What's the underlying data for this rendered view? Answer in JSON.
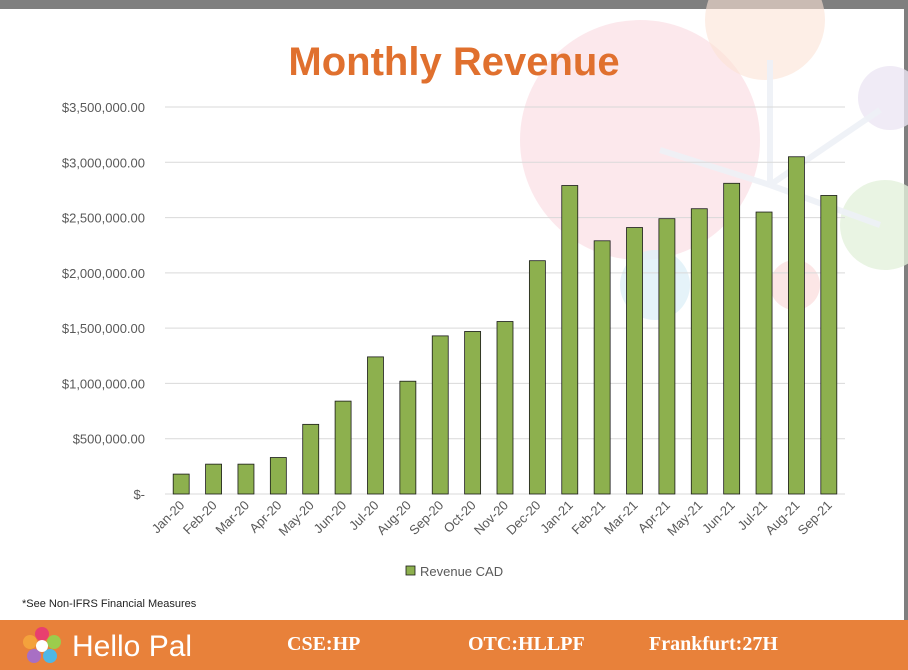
{
  "title": "Monthly Revenue",
  "footnote": "*See Non-IFRS Financial Measures",
  "footer": {
    "logo_text": "Hello Pal",
    "tickers": [
      "CSE:HP",
      "OTC:HLLPF",
      "Frankfurt:27H"
    ]
  },
  "colors": {
    "bar": "#8db04e",
    "bar_edge": "#1a1a1a",
    "title": "#e0702e",
    "footer": "#e8813a"
  },
  "chart_data": {
    "type": "bar",
    "categories": [
      "Jan-20",
      "Feb-20",
      "Mar-20",
      "Apr-20",
      "May-20",
      "Jun-20",
      "Jul-20",
      "Aug-20",
      "Sep-20",
      "Oct-20",
      "Nov-20",
      "Dec-20",
      "Jan-21",
      "Feb-21",
      "Mar-21",
      "Apr-21",
      "May-21",
      "Jun-21",
      "Jul-21",
      "Aug-21",
      "Sep-21"
    ],
    "series": [
      {
        "name": "Revenue CAD",
        "values": [
          180000,
          270000,
          270000,
          330000,
          630000,
          840000,
          1240000,
          1020000,
          1430000,
          1470000,
          1560000,
          2110000,
          2790000,
          2290000,
          2410000,
          2490000,
          2580000,
          2810000,
          2550000,
          3050000,
          2700000
        ]
      }
    ],
    "yticks": [
      0,
      500000,
      1000000,
      1500000,
      2000000,
      2500000,
      3000000,
      3500000
    ],
    "ytick_labels": [
      "$-",
      "$500,000.00",
      "$1,000,000.00",
      "$1,500,000.00",
      "$2,000,000.00",
      "$2,500,000.00",
      "$3,000,000.00",
      "$3,500,000.00"
    ],
    "ylim": [
      0,
      3500000
    ],
    "grid": true,
    "legend_position": "bottom"
  }
}
